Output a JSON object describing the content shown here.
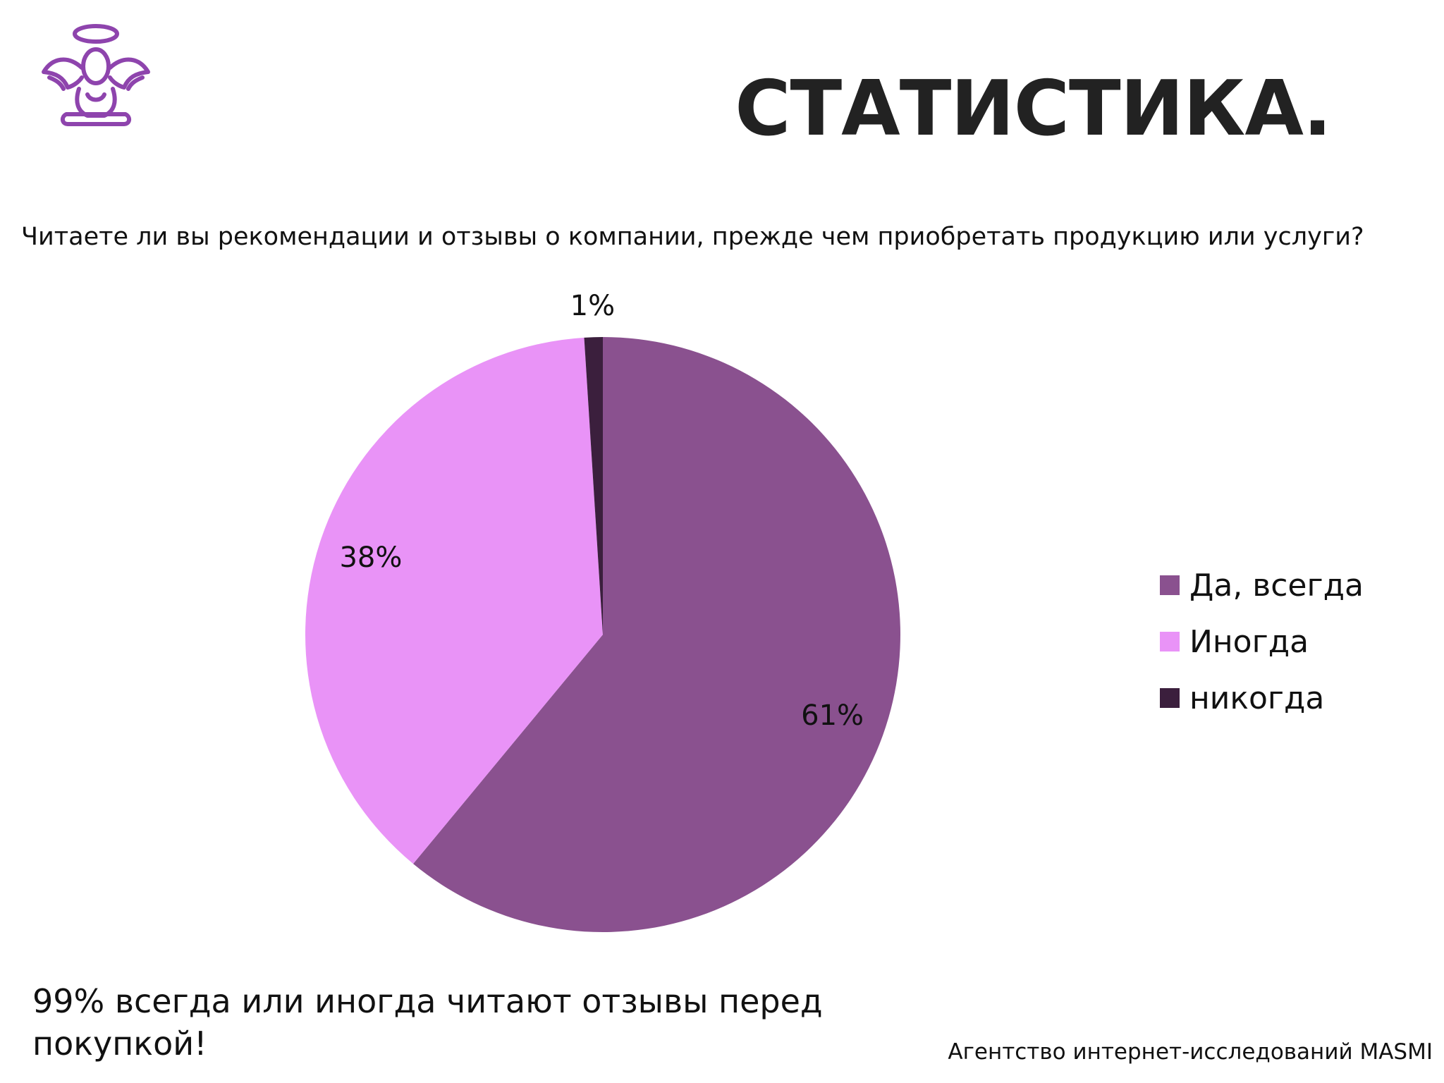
{
  "header": {
    "title": "СТАТИСТИКА."
  },
  "question": "Читаете ли вы рекомендации и отзывы о компании, прежде чем приобретать продукцию или услуги?",
  "chart_data": {
    "type": "pie",
    "categories": [
      "Да, всегда",
      "Иногда",
      "никогда"
    ],
    "values": [
      61,
      38,
      1
    ],
    "labels": [
      "61%",
      "38%",
      "1%"
    ],
    "colors": [
      "#8a518f",
      "#e993f7",
      "#3b1f3d"
    ],
    "legend_position": "right"
  },
  "conclusion": "99% всегда или иногда читают отзывы перед покупкой!",
  "footer": {
    "source": "Агентство интернет-исследований MASMI"
  },
  "logo": {
    "icon": "angel-logo-icon",
    "color": "#8e44ad"
  }
}
